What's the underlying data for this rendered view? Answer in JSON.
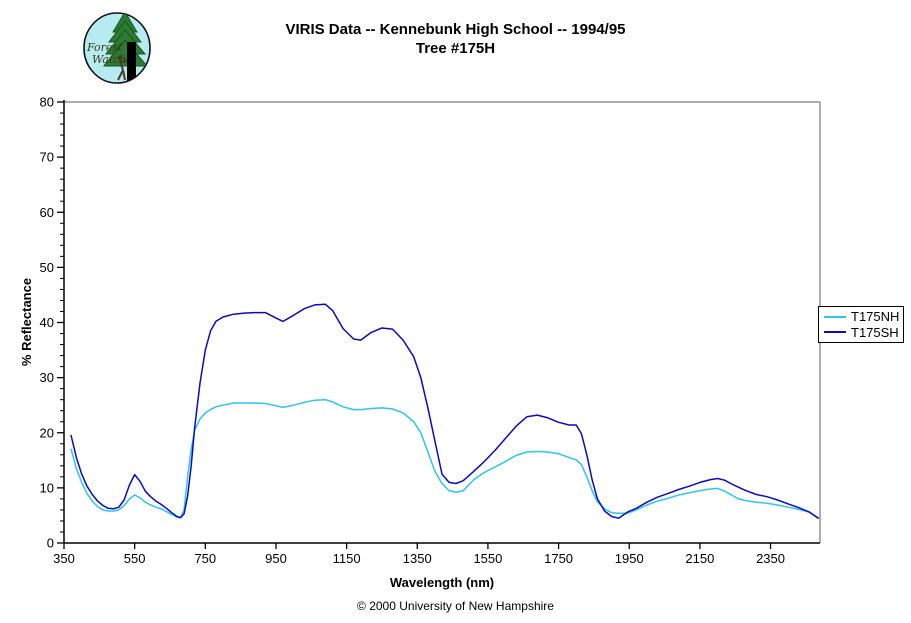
{
  "header": {
    "title_line1": "VIRIS Data -- Kennebunk High School -- 1994/95",
    "title_line2": "Tree #175H",
    "logo": {
      "text_line1": "Forest",
      "text_line2": "Watch",
      "bg_color": "#b6ebf2",
      "tree_color": "#2d7a33",
      "text_color": "#3c3c12"
    }
  },
  "footer": {
    "copyright": "© 2000 University of New Hampshire"
  },
  "chart_data": {
    "type": "line",
    "title": "VIRIS Data -- Kennebunk High School -- 1994/95 Tree #175H",
    "xlabel": "Wavelength (nm)",
    "ylabel": "% Reflectance",
    "xlim": [
      350,
      2490
    ],
    "ylim": [
      0,
      80
    ],
    "x_ticks": [
      350,
      550,
      750,
      950,
      1150,
      1350,
      1550,
      1750,
      1950,
      2150,
      2350
    ],
    "y_ticks": [
      0,
      10,
      20,
      30,
      40,
      50,
      60,
      70,
      80
    ],
    "y_minor_step": 2,
    "grid": false,
    "legend_position": "right",
    "frame_color": "#949494",
    "axis_color": "#000000",
    "x": [
      370,
      385,
      400,
      415,
      430,
      445,
      460,
      475,
      490,
      505,
      520,
      535,
      550,
      565,
      580,
      595,
      610,
      625,
      640,
      655,
      670,
      680,
      690,
      700,
      710,
      720,
      735,
      750,
      765,
      780,
      800,
      830,
      860,
      890,
      920,
      950,
      970,
      1000,
      1030,
      1060,
      1090,
      1110,
      1140,
      1170,
      1190,
      1220,
      1250,
      1280,
      1310,
      1340,
      1360,
      1380,
      1400,
      1420,
      1440,
      1460,
      1480,
      1510,
      1540,
      1570,
      1600,
      1630,
      1660,
      1690,
      1720,
      1750,
      1780,
      1800,
      1815,
      1830,
      1845,
      1860,
      1880,
      1900,
      1920,
      1945,
      1970,
      2000,
      2030,
      2060,
      2090,
      2120,
      2150,
      2180,
      2200,
      2220,
      2240,
      2260,
      2280,
      2310,
      2340,
      2370,
      2400,
      2430,
      2460,
      2485
    ],
    "series": [
      {
        "name": "T175NH",
        "color": "#2cc6ee",
        "values": [
          17.0,
          13.5,
          11.0,
          9.0,
          7.6,
          6.6,
          6.0,
          5.8,
          5.8,
          6.0,
          6.8,
          8.0,
          8.7,
          8.2,
          7.4,
          6.9,
          6.5,
          6.2,
          5.7,
          5.2,
          4.7,
          4.6,
          6.0,
          12.0,
          17.0,
          20.5,
          22.5,
          23.6,
          24.2,
          24.7,
          25.0,
          25.4,
          25.4,
          25.4,
          25.3,
          24.9,
          24.6,
          25.0,
          25.5,
          25.9,
          26.0,
          25.6,
          24.7,
          24.2,
          24.2,
          24.4,
          24.5,
          24.3,
          23.6,
          22.0,
          20.0,
          16.5,
          13.0,
          10.8,
          9.5,
          9.2,
          9.5,
          11.5,
          12.8,
          13.8,
          14.8,
          15.9,
          16.5,
          16.6,
          16.5,
          16.2,
          15.5,
          15.1,
          14.2,
          12.0,
          9.5,
          7.5,
          6.2,
          5.5,
          5.4,
          5.4,
          6.0,
          6.9,
          7.6,
          8.1,
          8.7,
          9.1,
          9.5,
          9.8,
          9.9,
          9.4,
          8.7,
          8.0,
          7.7,
          7.4,
          7.2,
          6.9,
          6.5,
          6.1,
          5.6,
          4.6
        ]
      },
      {
        "name": "T175SH",
        "color": "#0a0ac0",
        "values": [
          19.5,
          15.5,
          12.5,
          10.3,
          8.8,
          7.6,
          6.8,
          6.3,
          6.2,
          6.5,
          7.8,
          10.5,
          12.4,
          11.2,
          9.4,
          8.4,
          7.6,
          7.0,
          6.3,
          5.5,
          4.8,
          4.6,
          5.3,
          8.5,
          14.0,
          21.0,
          29.0,
          35.0,
          38.5,
          40.2,
          41.0,
          41.5,
          41.7,
          41.8,
          41.8,
          40.8,
          40.2,
          41.3,
          42.5,
          43.2,
          43.3,
          42.2,
          38.9,
          37.0,
          36.8,
          38.2,
          39.0,
          38.8,
          36.8,
          33.8,
          30.0,
          24.5,
          18.5,
          12.5,
          11.0,
          10.8,
          11.3,
          13.0,
          14.8,
          16.8,
          19.0,
          21.2,
          22.9,
          23.2,
          22.7,
          21.9,
          21.4,
          21.4,
          19.8,
          16.0,
          11.5,
          8.0,
          5.8,
          4.8,
          4.5,
          5.6,
          6.3,
          7.4,
          8.3,
          9.0,
          9.7,
          10.3,
          11.0,
          11.5,
          11.7,
          11.4,
          10.7,
          10.1,
          9.5,
          8.8,
          8.4,
          7.8,
          7.1,
          6.4,
          5.6,
          4.5
        ]
      }
    ]
  }
}
